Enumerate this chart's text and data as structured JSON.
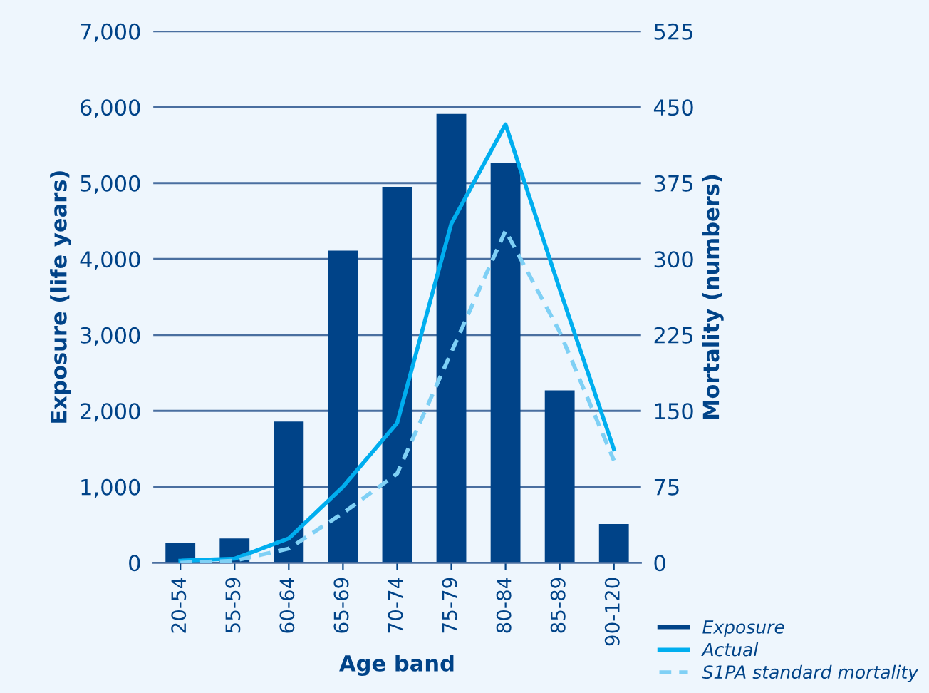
{
  "chart_data": {
    "type": "bar",
    "xlabel": "Age band",
    "ylabel": "Exposure (life years)",
    "y2label": "Mortality (numbers)",
    "categories": [
      "20-54",
      "55-59",
      "60-64",
      "65-69",
      "70-74",
      "75-79",
      "80-84",
      "85-89",
      "90-120"
    ],
    "series": [
      {
        "name": "Exposure",
        "color": "#004388",
        "values": [
          260,
          320,
          1860,
          4110,
          4950,
          5910,
          5270,
          2270,
          510
        ]
      },
      {
        "name": "Actual",
        "type": "line",
        "axis": "y2",
        "color": "#00aeef",
        "line_style": "solid",
        "values": [
          2,
          4,
          24,
          75,
          138,
          335,
          433,
          270,
          112
        ]
      },
      {
        "name": "S1PA standard mortality",
        "type": "line",
        "axis": "y2",
        "color": "#7fd0f5",
        "line_style": "dashed",
        "values": [
          0,
          2,
          14,
          49,
          88,
          208,
          328,
          228,
          101
        ]
      }
    ],
    "ylim": [
      0,
      7000
    ],
    "yticks": [
      {
        "value": 0,
        "label": "0"
      },
      {
        "value": 1000,
        "label": "1,000"
      },
      {
        "value": 2000,
        "label": "2,000"
      },
      {
        "value": 3000,
        "label": "3,000"
      },
      {
        "value": 4000,
        "label": "4,000"
      },
      {
        "value": 5000,
        "label": "5,000"
      },
      {
        "value": 6000,
        "label": "6,000"
      },
      {
        "value": 7000,
        "label": "7,000"
      }
    ],
    "y2lim": [
      0,
      525
    ],
    "y2ticks": [
      0,
      75,
      150,
      225,
      300,
      375,
      450,
      525
    ],
    "grid": "y",
    "legend": "bottom right"
  }
}
